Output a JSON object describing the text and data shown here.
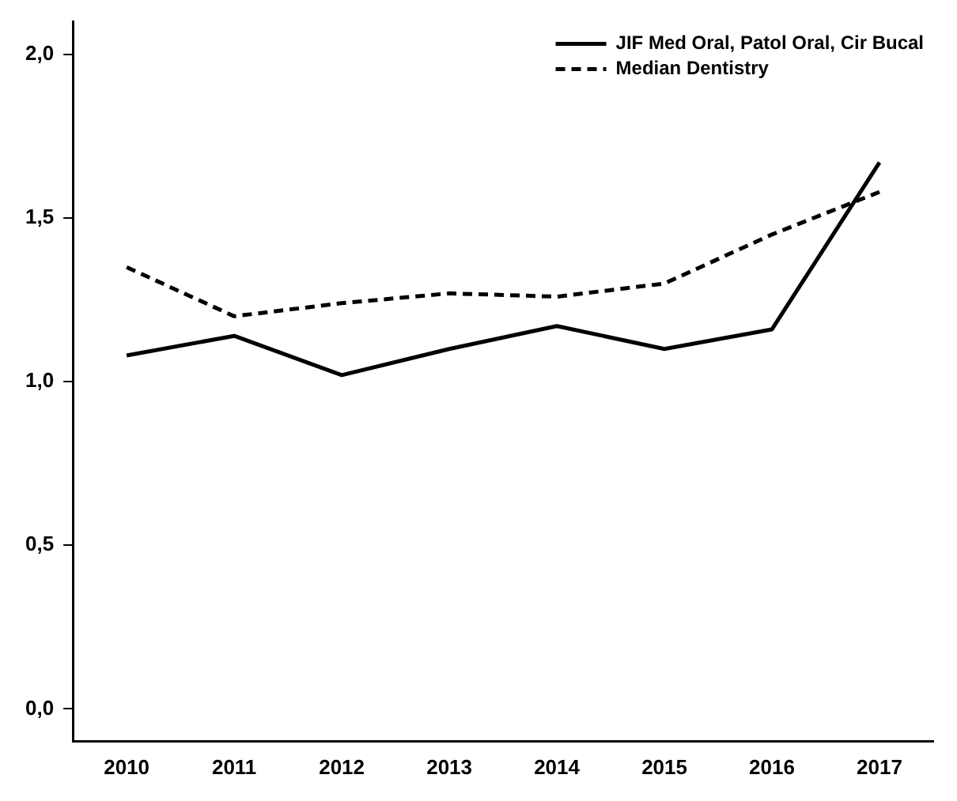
{
  "chart_data": {
    "type": "line",
    "categories": [
      "2010",
      "2011",
      "2012",
      "2013",
      "2014",
      "2015",
      "2016",
      "2017"
    ],
    "series": [
      {
        "name": "JIF Med Oral, Patol Oral, Cir Bucal",
        "color": "#000000",
        "line_style": "solid",
        "values": [
          1.08,
          1.14,
          1.02,
          1.1,
          1.17,
          1.1,
          1.16,
          1.67
        ]
      },
      {
        "name": "Median Dentistry",
        "color": "#000000",
        "line_style": "dashed",
        "values": [
          1.35,
          1.2,
          1.24,
          1.27,
          1.26,
          1.3,
          1.45,
          1.58
        ]
      }
    ],
    "ylim": [
      -0.1,
      2.1
    ],
    "yticks": [
      {
        "value": 0,
        "label": "0,0"
      },
      {
        "value": 0.5,
        "label": "0,5"
      },
      {
        "value": 1,
        "label": "1,0"
      },
      {
        "value": 1.5,
        "label": "1,5"
      },
      {
        "value": 2,
        "label": "2,0"
      }
    ],
    "grid": false,
    "legend": "top right",
    "marker": "none"
  }
}
